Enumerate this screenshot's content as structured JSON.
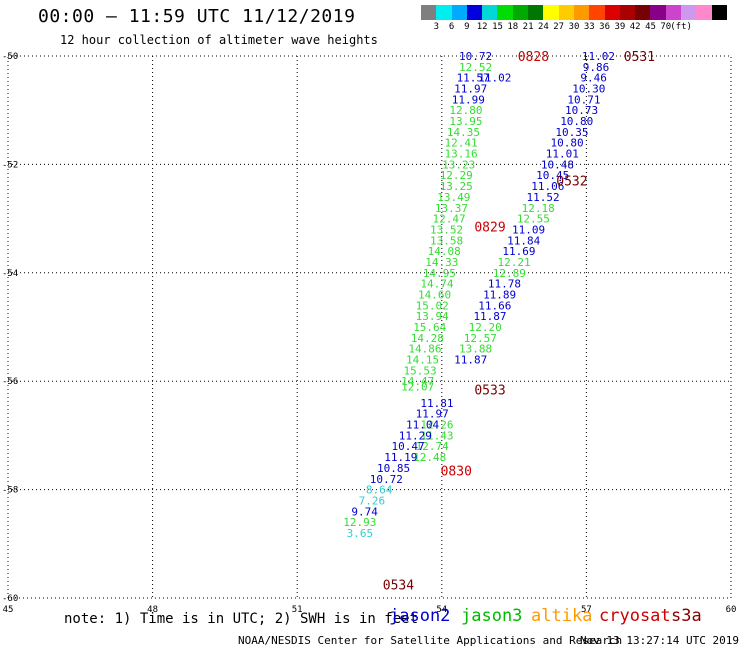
{
  "header": {
    "title": "00:00 – 11:59 UTC 11/12/2019",
    "subtitle": "12 hour collection of altimeter wave heights"
  },
  "color_scale": {
    "colors": [
      "#7f7f7f",
      "#00eeee",
      "#00aaff",
      "#0000dd",
      "#00d8d8",
      "#00dd00",
      "#00aa00",
      "#007700",
      "#ffff00",
      "#ffcc00",
      "#ff9900",
      "#ff4400",
      "#dd0000",
      "#aa0000",
      "#770000",
      "#880088",
      "#cc44cc",
      "#cc99ee",
      "#ff88cc",
      "#000000"
    ],
    "labels": [
      "3",
      "6",
      "9",
      "12",
      "15",
      "18",
      "21",
      "24",
      "27",
      "30",
      "33",
      "36",
      "39",
      "42",
      "45",
      "70",
      "(ft)"
    ]
  },
  "axes": {
    "x_ticks": [
      "45",
      "48",
      "51",
      "54",
      "57",
      "60"
    ],
    "y_ticks": [
      "-50",
      "-52",
      "-54",
      "-56",
      "-58",
      "-60"
    ],
    "lon_range": [
      45,
      60
    ],
    "lat_range": [
      -60,
      -50
    ]
  },
  "satellite_colors": {
    "jason2": "#0000cc",
    "jason3": "#33dd33",
    "altika": "#ff9900",
    "cryosat": "#cc0000",
    "s3a": "#770000",
    "low": "#33cccc",
    "mid": "#33dd33"
  },
  "observations": [
    {
      "lon": 54.7,
      "lat": -50.0,
      "value": "10.72",
      "sat": "jason2"
    },
    {
      "lon": 54.7,
      "lat": -50.2,
      "value": "12.52",
      "sat": "jason3"
    },
    {
      "lon": 54.65,
      "lat": -50.4,
      "value": "11.57",
      "sat": "jason2"
    },
    {
      "lon": 54.6,
      "lat": -50.6,
      "value": "11.97",
      "sat": "jason2"
    },
    {
      "lon": 54.55,
      "lat": -50.8,
      "value": "11.99",
      "sat": "jason2"
    },
    {
      "lon": 54.5,
      "lat": -51.0,
      "value": "12.80",
      "sat": "jason3"
    },
    {
      "lon": 54.5,
      "lat": -51.2,
      "value": "13.95",
      "sat": "jason3"
    },
    {
      "lon": 54.45,
      "lat": -51.4,
      "value": "14.35",
      "sat": "jason3"
    },
    {
      "lon": 54.4,
      "lat": -51.6,
      "value": "12.41",
      "sat": "jason3"
    },
    {
      "lon": 54.4,
      "lat": -51.8,
      "value": "13.16",
      "sat": "jason3"
    },
    {
      "lon": 54.35,
      "lat": -52.0,
      "value": "13.23",
      "sat": "jason3"
    },
    {
      "lon": 54.3,
      "lat": -52.2,
      "value": "12.29",
      "sat": "jason3"
    },
    {
      "lon": 54.3,
      "lat": -52.4,
      "value": "13.25",
      "sat": "jason3"
    },
    {
      "lon": 54.25,
      "lat": -52.6,
      "value": "13.49",
      "sat": "jason3"
    },
    {
      "lon": 54.2,
      "lat": -52.8,
      "value": "13.37",
      "sat": "jason3"
    },
    {
      "lon": 54.15,
      "lat": -53.0,
      "value": "12.47",
      "sat": "jason3"
    },
    {
      "lon": 54.1,
      "lat": -53.2,
      "value": "13.52",
      "sat": "jason3"
    },
    {
      "lon": 54.1,
      "lat": -53.4,
      "value": "13.58",
      "sat": "jason3"
    },
    {
      "lon": 54.05,
      "lat": -53.6,
      "value": "14.08",
      "sat": "jason3"
    },
    {
      "lon": 54.0,
      "lat": -53.8,
      "value": "14.33",
      "sat": "jason3"
    },
    {
      "lon": 53.95,
      "lat": -54.0,
      "value": "14.95",
      "sat": "jason3"
    },
    {
      "lon": 53.9,
      "lat": -54.2,
      "value": "14.74",
      "sat": "jason3"
    },
    {
      "lon": 53.85,
      "lat": -54.4,
      "value": "14.60",
      "sat": "jason3"
    },
    {
      "lon": 53.8,
      "lat": -54.6,
      "value": "15.02",
      "sat": "mid"
    },
    {
      "lon": 53.8,
      "lat": -54.8,
      "value": "13.94",
      "sat": "jason3"
    },
    {
      "lon": 53.75,
      "lat": -55.0,
      "value": "15.64",
      "sat": "mid"
    },
    {
      "lon": 53.7,
      "lat": -55.2,
      "value": "14.28",
      "sat": "jason3"
    },
    {
      "lon": 53.65,
      "lat": -55.4,
      "value": "14.86",
      "sat": "jason3"
    },
    {
      "lon": 53.6,
      "lat": -55.6,
      "value": "14.15",
      "sat": "jason3"
    },
    {
      "lon": 53.55,
      "lat": -55.8,
      "value": "15.53",
      "sat": "mid"
    },
    {
      "lon": 53.5,
      "lat": -56.0,
      "value": "14.47",
      "sat": "jason3"
    },
    {
      "lon": 53.5,
      "lat": -56.1,
      "value": "12.07",
      "sat": "jason3"
    },
    {
      "lon": 55.1,
      "lat": -50.4,
      "value": "11.02",
      "sat": "jason2"
    },
    {
      "lon": 57.25,
      "lat": -50.0,
      "value": "11.02",
      "sat": "jason2"
    },
    {
      "lon": 57.2,
      "lat": -50.2,
      "value": "9.86",
      "sat": "jason2"
    },
    {
      "lon": 57.15,
      "lat": -50.4,
      "value": "9.46",
      "sat": "jason2"
    },
    {
      "lon": 57.05,
      "lat": -50.6,
      "value": "10.30",
      "sat": "jason2"
    },
    {
      "lon": 56.95,
      "lat": -50.8,
      "value": "10.71",
      "sat": "jason2"
    },
    {
      "lon": 56.9,
      "lat": -51.0,
      "value": "10.73",
      "sat": "jason2"
    },
    {
      "lon": 56.8,
      "lat": -51.2,
      "value": "10.80",
      "sat": "jason2"
    },
    {
      "lon": 56.7,
      "lat": -51.4,
      "value": "10.35",
      "sat": "jason2"
    },
    {
      "lon": 56.6,
      "lat": -51.6,
      "value": "10.80",
      "sat": "jason2"
    },
    {
      "lon": 56.5,
      "lat": -51.8,
      "value": "11.01",
      "sat": "jason2"
    },
    {
      "lon": 56.4,
      "lat": -52.0,
      "value": "10.48",
      "sat": "jason2"
    },
    {
      "lon": 56.3,
      "lat": -52.2,
      "value": "10.45",
      "sat": "jason2"
    },
    {
      "lon": 56.2,
      "lat": -52.4,
      "value": "11.06",
      "sat": "jason2"
    },
    {
      "lon": 56.1,
      "lat": -52.6,
      "value": "11.52",
      "sat": "jason2"
    },
    {
      "lon": 56.0,
      "lat": -52.8,
      "value": "12.18",
      "sat": "jason3"
    },
    {
      "lon": 55.9,
      "lat": -53.0,
      "value": "12.55",
      "sat": "jason3"
    },
    {
      "lon": 55.8,
      "lat": -53.2,
      "value": "11.09",
      "sat": "jason2"
    },
    {
      "lon": 55.7,
      "lat": -53.4,
      "value": "11.84",
      "sat": "jason2"
    },
    {
      "lon": 55.6,
      "lat": -53.6,
      "value": "11.69",
      "sat": "jason2"
    },
    {
      "lon": 55.5,
      "lat": -53.8,
      "value": "12.21",
      "sat": "jason3"
    },
    {
      "lon": 55.4,
      "lat": -54.0,
      "value": "12.89",
      "sat": "jason3"
    },
    {
      "lon": 55.3,
      "lat": -54.2,
      "value": "11.78",
      "sat": "jason2"
    },
    {
      "lon": 55.2,
      "lat": -54.4,
      "value": "11.89",
      "sat": "jason2"
    },
    {
      "lon": 55.1,
      "lat": -54.6,
      "value": "11.66",
      "sat": "jason2"
    },
    {
      "lon": 55.0,
      "lat": -54.8,
      "value": "11.87",
      "sat": "jason2"
    },
    {
      "lon": 54.9,
      "lat": -55.0,
      "value": "12.20",
      "sat": "jason3"
    },
    {
      "lon": 54.8,
      "lat": -55.2,
      "value": "12.57",
      "sat": "jason3"
    },
    {
      "lon": 54.7,
      "lat": -55.4,
      "value": "13.88",
      "sat": "jason3"
    },
    {
      "lon": 54.6,
      "lat": -55.6,
      "value": "11.87",
      "sat": "jason2"
    },
    {
      "lon": 53.9,
      "lat": -56.4,
      "value": "11.81",
      "sat": "jason2"
    },
    {
      "lon": 53.8,
      "lat": -56.6,
      "value": "11.97",
      "sat": "jason2"
    },
    {
      "lon": 53.9,
      "lat": -56.8,
      "value": "12.26",
      "sat": "jason3"
    },
    {
      "lon": 53.6,
      "lat": -56.8,
      "value": "11.04",
      "sat": "jason2"
    },
    {
      "lon": 53.9,
      "lat": -57.0,
      "value": "11.43",
      "sat": "jason3"
    },
    {
      "lon": 53.45,
      "lat": -57.0,
      "value": "11.29",
      "sat": "jason2"
    },
    {
      "lon": 53.8,
      "lat": -57.2,
      "value": "12.74",
      "sat": "jason3"
    },
    {
      "lon": 53.3,
      "lat": -57.2,
      "value": "10.47",
      "sat": "jason2"
    },
    {
      "lon": 53.75,
      "lat": -57.4,
      "value": "12.48",
      "sat": "jason3"
    },
    {
      "lon": 53.15,
      "lat": -57.4,
      "value": "11.19",
      "sat": "jason2"
    },
    {
      "lon": 53.0,
      "lat": -57.6,
      "value": "10.85",
      "sat": "jason2"
    },
    {
      "lon": 52.85,
      "lat": -57.8,
      "value": "10.72",
      "sat": "jason2"
    },
    {
      "lon": 52.7,
      "lat": -58.0,
      "value": "8.64",
      "sat": "low"
    },
    {
      "lon": 52.55,
      "lat": -58.2,
      "value": "7.26",
      "sat": "low"
    },
    {
      "lon": 52.4,
      "lat": -58.4,
      "value": "9.74",
      "sat": "jason2"
    },
    {
      "lon": 52.3,
      "lat": -58.6,
      "value": "12.93",
      "sat": "jason3"
    },
    {
      "lon": 52.3,
      "lat": -58.8,
      "value": "3.65",
      "sat": "low"
    }
  ],
  "pass_times": [
    {
      "lon": 55.9,
      "lat": -50.0,
      "label": "0828",
      "sat": "cryosat"
    },
    {
      "lon": 58.1,
      "lat": -50.0,
      "label": "0531",
      "sat": "s3a"
    },
    {
      "lon": 56.7,
      "lat": -52.3,
      "label": "0532",
      "sat": "s3a"
    },
    {
      "lon": 55.0,
      "lat": -53.15,
      "label": "0829",
      "sat": "cryosat"
    },
    {
      "lon": 55.0,
      "lat": -56.15,
      "label": "0533",
      "sat": "s3a"
    },
    {
      "lon": 54.3,
      "lat": -57.65,
      "label": "0830",
      "sat": "cryosat"
    },
    {
      "lon": 53.1,
      "lat": -59.75,
      "label": "0534",
      "sat": "s3a"
    }
  ],
  "legend": {
    "notes": "note: 1) Time is in UTC; 2) SWH is in feet",
    "items": [
      {
        "name": "jason2",
        "color": "#0000cc"
      },
      {
        "name": "jason3",
        "color": "#00bb00"
      },
      {
        "name": "altika",
        "color": "#ff9900"
      },
      {
        "name": "cryosat",
        "color": "#cc0000"
      },
      {
        "name": "s3a",
        "color": "#880000"
      }
    ]
  },
  "footer": {
    "credit": "NOAA/NESDIS Center for Satellite Applications and Research",
    "timestamp": "Nov 13 13:27:14 UTC 2019"
  }
}
